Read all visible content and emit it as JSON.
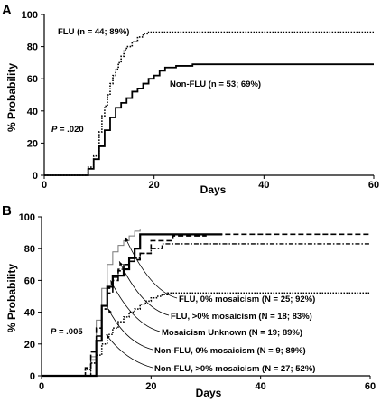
{
  "chart_data": [
    {
      "type": "line",
      "panel": "A",
      "xlabel": "Days",
      "ylabel": "% Probability",
      "xlim": [
        0,
        60
      ],
      "ylim": [
        0,
        100
      ],
      "xticks": [
        0,
        20,
        40,
        60
      ],
      "yticks": [
        0,
        20,
        40,
        60,
        80,
        100
      ],
      "step": true,
      "annotations": [
        {
          "series": "FLU",
          "text": "FLU (n = 44; 89%)"
        },
        {
          "series": "Non-FLU",
          "text": "Non-FLU (n = 53; 69%)"
        }
      ],
      "pvalue": {
        "label": "P",
        "text": " = .020"
      },
      "series": [
        {
          "key": "FLU",
          "style": "dotted",
          "color": "#000000",
          "x": [
            0,
            8,
            9,
            10,
            10.5,
            11,
            11.5,
            12,
            12.5,
            13,
            13.5,
            14,
            14.5,
            15,
            16,
            17,
            18,
            19,
            60
          ],
          "y": [
            0,
            5,
            12,
            27,
            37,
            43,
            50,
            57,
            62,
            66,
            70,
            74,
            78,
            80,
            83,
            86,
            88,
            89,
            89
          ]
        },
        {
          "key": "Non-FLU",
          "style": "solid",
          "color": "#000000",
          "x": [
            0,
            8,
            9,
            10,
            11,
            12,
            13,
            14,
            15,
            16,
            17,
            18,
            19,
            20,
            21,
            22,
            24,
            27,
            60
          ],
          "y": [
            0,
            4,
            10,
            18,
            28,
            36,
            42,
            45,
            48,
            52,
            54,
            57,
            60,
            62,
            65,
            67,
            68,
            69,
            69
          ]
        }
      ]
    },
    {
      "type": "line",
      "panel": "B",
      "xlabel": "Days",
      "ylabel": "% Probability",
      "xlim": [
        0,
        60
      ],
      "ylim": [
        0,
        100
      ],
      "xticks": [
        0,
        20,
        40,
        60
      ],
      "yticks": [
        0,
        20,
        40,
        60,
        80,
        100
      ],
      "step": true,
      "pvalue": {
        "label": "P",
        "text": " = .005"
      },
      "legend_labels": [
        {
          "series": "FLU-0",
          "text": "FLU, 0% mosaicism (N = 25; 92%)"
        },
        {
          "series": "FLU-gt0",
          "text": "FLU, >0% mosaicism (N = 18; 83%)"
        },
        {
          "series": "MosUnknown",
          "text": "Mosaicism Unknown (N = 19; 89%)"
        },
        {
          "series": "NonFLU-0",
          "text": "Non-FLU, 0% mosaicism (N = 9; 89%)"
        },
        {
          "series": "NonFLU-gt0",
          "text": "Non-FLU, >0% mosaicism (N = 27; 52%)"
        }
      ],
      "series": [
        {
          "key": "FLU-0",
          "style": "thin",
          "color": "#777777",
          "x": [
            0,
            9,
            10,
            11,
            12,
            13,
            14,
            15,
            16,
            17,
            18
          ],
          "y": [
            0,
            12,
            35,
            55,
            70,
            78,
            82,
            85,
            88,
            91,
            92
          ]
        },
        {
          "key": "FLU-gt0",
          "style": "dotdash",
          "color": "#000000",
          "x": [
            0,
            9,
            10,
            11,
            12,
            13,
            14,
            15,
            16,
            17,
            18,
            20,
            22,
            60
          ],
          "y": [
            0,
            10,
            25,
            42,
            55,
            62,
            67,
            70,
            72,
            74,
            77,
            80,
            83,
            83
          ]
        },
        {
          "key": "MosUnknown",
          "style": "dashed",
          "color": "#000000",
          "x": [
            0,
            8,
            9,
            10,
            11,
            12,
            13,
            14,
            15,
            16,
            17,
            18,
            20,
            24,
            30,
            60
          ],
          "y": [
            0,
            5,
            15,
            30,
            42,
            52,
            60,
            66,
            70,
            72,
            73,
            77,
            85,
            88,
            89,
            89
          ]
        },
        {
          "key": "NonFLU-0",
          "style": "thick",
          "color": "#000000",
          "x": [
            0,
            10,
            11,
            12,
            13,
            14,
            15,
            16,
            17,
            18,
            33
          ],
          "y": [
            0,
            22,
            44,
            56,
            63,
            63,
            67,
            74,
            80,
            89,
            89
          ]
        },
        {
          "key": "NonFLU-gt0",
          "style": "dotted",
          "color": "#000000",
          "x": [
            0,
            8,
            9,
            10,
            11,
            12,
            13,
            14,
            15,
            16,
            17,
            18,
            19,
            20,
            21,
            22,
            23,
            60
          ],
          "y": [
            0,
            4,
            8,
            13,
            20,
            26,
            30,
            34,
            37,
            40,
            42,
            45,
            47,
            49,
            50,
            51,
            52,
            52
          ]
        }
      ]
    }
  ]
}
